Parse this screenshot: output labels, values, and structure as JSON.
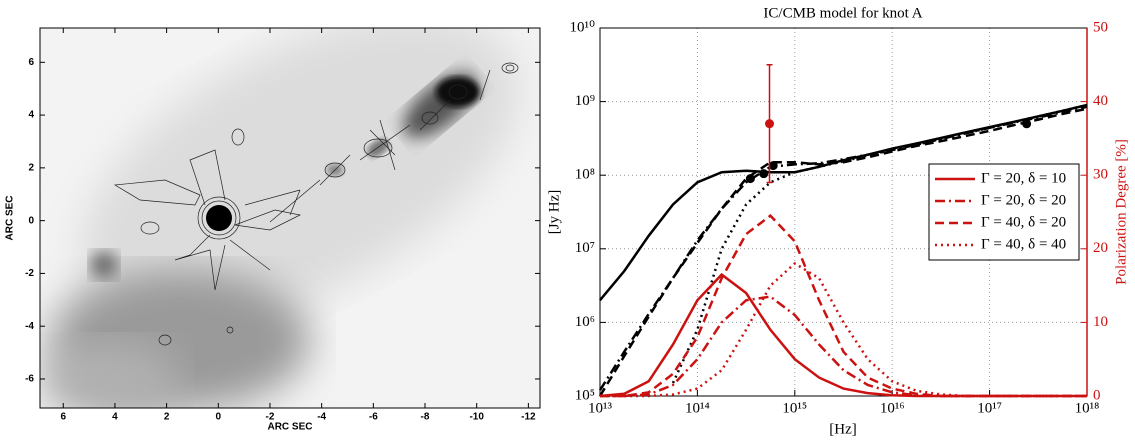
{
  "chart_data": [
    {
      "type": "image",
      "xlabel": "ARC SEC",
      "ylabel": "ARC SEC",
      "xlim": [
        6.9,
        -12.45
      ],
      "ylim": [
        -7.1,
        7.3
      ],
      "xticks": [
        6,
        4,
        2,
        0,
        -2,
        -4,
        -6,
        -8,
        -10,
        -12
      ],
      "yticks": [
        -6,
        -4,
        -2,
        0,
        2,
        4,
        6
      ]
    },
    {
      "type": "line",
      "title": "IC/CMB model for knot A",
      "xlabel": "[Hz]",
      "ylabel": "[Jy Hz]",
      "y2label": "Polarization Degree [%]",
      "xscale": "log",
      "yscale": "log",
      "grid": true,
      "legend": "center right",
      "xlim": [
        10000000000000.0,
        1e+18
      ],
      "ylim": [
        100000.0,
        10000000000.0
      ],
      "y2lim": [
        0,
        50
      ],
      "xticks": [
        {
          "value": 10000000000000.0,
          "label": "10¹³"
        },
        {
          "value": 100000000000000.0,
          "label": "10¹⁴"
        },
        {
          "value": 1000000000000000.0,
          "label": "10¹⁵"
        },
        {
          "value": 1e+16,
          "label": "10¹⁶"
        },
        {
          "value": 1e+17,
          "label": "10¹⁷"
        },
        {
          "value": 1e+18,
          "label": "10¹⁸"
        }
      ],
      "yticks": [
        {
          "value": 100000.0,
          "label": "10⁵"
        },
        {
          "value": 1000000.0,
          "label": "10⁶"
        },
        {
          "value": 10000000.0,
          "label": "10⁷"
        },
        {
          "value": 100000000.0,
          "label": "10⁸"
        },
        {
          "value": 1000000000.0,
          "label": "10⁹"
        },
        {
          "value": 10000000000.0,
          "label": "10¹⁰"
        }
      ],
      "y2ticks": [
        0,
        10,
        20,
        30,
        40,
        50
      ],
      "x": [
        10000000000000.0,
        17780000000000.0,
        31620000000000.0,
        56230000000000.0,
        100000000000000.0,
        177800000000000.0,
        316200000000000.0,
        562300000000000.0,
        1000000000000000.0,
        1778000000000000.0,
        3162000000000000.0,
        5623000000000000.0,
        1e+16,
        1.778e+16,
        3.162e+16,
        5.623e+16,
        1e+17,
        1.778e+17,
        3.162e+17,
        5.623e+17,
        1e+18
      ],
      "series": [
        {
          "color": "#000000",
          "style": "solid",
          "values": [
            2000000.0,
            5000000.0,
            15000000.0,
            40000000.0,
            80000000.0,
            110000000.0,
            115000000.0,
            110000000.0,
            110000000.0,
            130000000.0,
            160000000.0,
            190000000.0,
            230000000.0,
            270000000.0,
            320000000.0,
            380000000.0,
            450000000.0,
            530000000.0,
            630000000.0,
            750000000.0,
            900000000.0
          ]
        },
        {
          "color": "#000000",
          "style": "dashdot",
          "values": [
            120000.0,
            400000.0,
            1300000.0,
            4000000.0,
            13000000.0,
            35000000.0,
            80000000.0,
            130000000.0,
            140000000.0,
            145000000.0,
            165000000.0,
            190000000.0,
            220000000.0,
            260000000.0,
            310000000.0,
            370000000.0,
            440000000.0,
            520000000.0,
            610000000.0,
            720000000.0,
            850000000.0
          ]
        },
        {
          "color": "#000000",
          "style": "dashed",
          "values": [
            100000.0,
            350000.0,
            1200000.0,
            4000000.0,
            12000000.0,
            35000000.0,
            90000000.0,
            150000000.0,
            150000000.0,
            140000000.0,
            150000000.0,
            175000000.0,
            210000000.0,
            250000000.0,
            290000000.0,
            340000000.0,
            400000000.0,
            480000000.0,
            570000000.0,
            680000000.0,
            800000000.0
          ]
        },
        {
          "color": "#000000",
          "style": "dotted",
          "values": [
            null,
            null,
            null,
            150000.0,
            800000.0,
            10000000.0,
            40000000.0,
            80000000.0,
            110000000.0,
            130000000.0,
            155000000.0,
            185000000.0,
            220000000.0,
            260000000.0,
            310000000.0,
            370000000.0,
            440000000.0,
            530000000.0,
            630000000.0,
            750000000.0,
            900000000.0
          ]
        },
        {
          "name": "Γ = 20, δ = 10",
          "color": "#cc1111",
          "style": "solid",
          "axis": "y2",
          "values": [
            0,
            0.3,
            2,
            7,
            13,
            16.5,
            14,
            9,
            5,
            2.5,
            1,
            0.4,
            0.1,
            0,
            0,
            0,
            0,
            0,
            0,
            0,
            0
          ]
        },
        {
          "name": "Γ = 20, δ = 20",
          "color": "#cc1111",
          "style": "dashdot",
          "axis": "y2",
          "values": [
            0,
            0,
            0.2,
            1.5,
            5,
            10,
            13,
            13.5,
            11,
            7,
            3.5,
            1.5,
            0.5,
            0.1,
            0,
            0,
            0,
            0,
            0,
            0,
            0
          ]
        },
        {
          "name": "Γ = 40, δ = 20",
          "color": "#cc1111",
          "style": "dashed",
          "axis": "y2",
          "values": [
            0,
            0,
            0.5,
            3,
            8,
            16,
            22,
            24.5,
            21,
            13,
            6,
            2.5,
            1,
            0.3,
            0,
            0,
            0,
            0,
            0,
            0,
            0
          ]
        },
        {
          "name": "Γ = 40, δ = 40",
          "color": "#cc1111",
          "style": "dotted",
          "axis": "y2",
          "values": [
            0,
            0,
            0,
            0.2,
            1,
            3.5,
            9,
            15,
            18,
            16,
            10,
            5,
            2,
            0.7,
            0.2,
            0,
            0,
            0,
            0,
            0,
            0
          ]
        },
        {
          "type": "scatter",
          "color": "#000000",
          "x": [
            350000000000000.0,
            480000000000000.0,
            600000000000000.0,
            2.4e+17
          ],
          "values": [
            90000000.0,
            105000000.0,
            135000000.0,
            500000000.0
          ]
        },
        {
          "type": "scatter",
          "color": "#cc1111",
          "axis": "y2",
          "x": [
            550000000000000.0
          ],
          "values": [
            37
          ],
          "errors": [
            8
          ]
        }
      ]
    }
  ]
}
